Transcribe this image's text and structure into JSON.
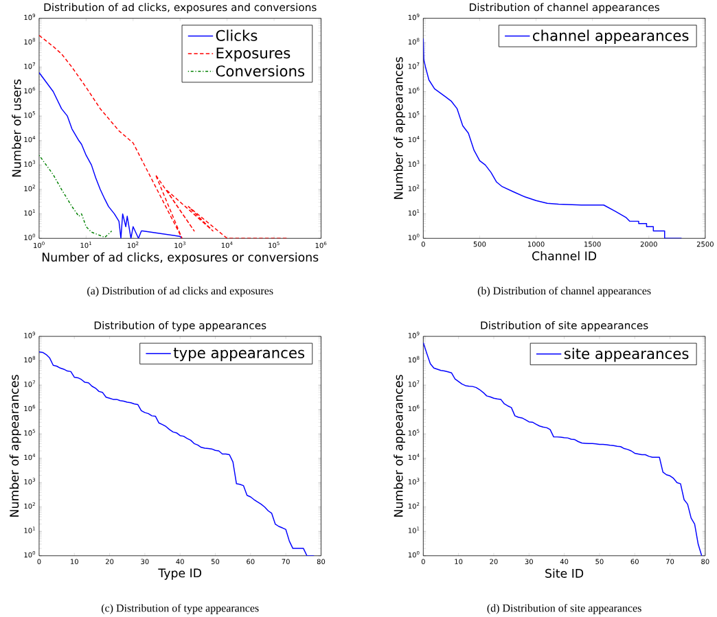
{
  "chart_data": [
    {
      "type": "line",
      "title": "Distribution of ad clicks, exposures and conversions",
      "xlabel": "Number of ad clicks, exposures or conversions",
      "ylabel": "Number of users",
      "annotations": [
        "(a) Distribution of ad clicks and exposures"
      ],
      "log": "xy",
      "legend": "top right",
      "xlim": [
        1,
        1000000
      ],
      "ylim": [
        1,
        1000000000
      ],
      "xticks": [
        {
          "value": 1,
          "label": "10$^{0}$"
        },
        {
          "value": 10,
          "label": "10$^{1}$"
        },
        {
          "value": 100,
          "label": "10$^{2}$"
        },
        {
          "value": 1000,
          "label": "10$^{3}$"
        },
        {
          "value": 10000,
          "label": "10$^{4}$"
        },
        {
          "value": 100000,
          "label": "10$^{5}$"
        },
        {
          "value": 1000000,
          "label": "10$^{6}$"
        }
      ],
      "yticks": [
        {
          "value": 1,
          "label": "10$^{0}$"
        },
        {
          "value": 10,
          "label": "10$^{1}$"
        },
        {
          "value": 100,
          "label": "10$^{2}$"
        },
        {
          "value": 1000,
          "label": "10$^{3}$"
        },
        {
          "value": 10000,
          "label": "10$^{4}$"
        },
        {
          "value": 100000,
          "label": "10$^{5}$"
        },
        {
          "value": 1000000,
          "label": "10$^{6}$"
        },
        {
          "value": 10000000,
          "label": "10$^{7}$"
        },
        {
          "value": 100000000,
          "label": "10$^{8}$"
        },
        {
          "value": 1000000000,
          "label": "10$^{9}$"
        }
      ],
      "series": [
        {
          "name": "Clicks",
          "color": "#0000ff",
          "line_style": "solid",
          "x": [
            1,
            2,
            3,
            4,
            5,
            7,
            8,
            10,
            13,
            16,
            20,
            25,
            30,
            40,
            50,
            55,
            60,
            70,
            75,
            90,
            100,
            130,
            150,
            160,
            1000,
            1100
          ],
          "values": [
            6000000,
            1000000,
            200000,
            100000,
            30000,
            10000,
            7000,
            2500,
            1000,
            300,
            100,
            40,
            20,
            10,
            5,
            1,
            10,
            3,
            8,
            1,
            3,
            1,
            2,
            2,
            1.2,
            1
          ]
        },
        {
          "name": "Exposures",
          "color": "#ff0000",
          "line_style": "dashed",
          "x": [
            1,
            2,
            3,
            5,
            10,
            20,
            50,
            100,
            1100,
            300,
            2000,
            500,
            5000,
            1500,
            10000,
            20000,
            200000
          ],
          "values": [
            200000000,
            70000000,
            35000000,
            10000000,
            1500000,
            200000,
            25000,
            8000,
            1,
            400,
            2,
            100,
            2,
            20,
            1,
            1,
            1
          ]
        },
        {
          "name": "Conversions",
          "color": "#008000",
          "line_style": "dotted",
          "x": [
            1,
            2,
            3,
            5,
            7,
            8,
            10,
            13,
            20,
            25,
            30,
            35
          ],
          "values": [
            2500,
            400,
            100,
            20,
            8,
            10,
            3,
            1.8,
            1.3,
            1.1,
            1.5,
            2
          ]
        }
      ]
    },
    {
      "type": "line",
      "title": "Distribution of channel appearances",
      "xlabel": "Channel ID",
      "ylabel": "Number of appearances",
      "annotations": [
        "(b) Distribution of channel appearances"
      ],
      "log": "y",
      "legend": "top right",
      "xlim": [
        0,
        2500
      ],
      "ylim": [
        1,
        1000000000
      ],
      "xticks": [
        0,
        500,
        1000,
        1500,
        2000,
        2500
      ],
      "yticks": [
        {
          "value": 1,
          "label": "10$^{0}$"
        },
        {
          "value": 10,
          "label": "10$^{1}$"
        },
        {
          "value": 100,
          "label": "10$^{2}$"
        },
        {
          "value": 1000,
          "label": "10$^{3}$"
        },
        {
          "value": 10000,
          "label": "10$^{4}$"
        },
        {
          "value": 100000,
          "label": "10$^{5}$"
        },
        {
          "value": 1000000,
          "label": "10$^{6}$"
        },
        {
          "value": 10000000,
          "label": "10$^{7}$"
        },
        {
          "value": 100000000,
          "label": "10$^{8}$"
        },
        {
          "value": 1000000000,
          "label": "10$^{9}$"
        }
      ],
      "series": [
        {
          "name": "channel appearances",
          "color": "#0000ff",
          "line_style": "solid",
          "x": [
            0,
            5,
            20,
            50,
            100,
            200,
            250,
            300,
            350,
            400,
            450,
            500,
            550,
            600,
            650,
            700,
            800,
            900,
            1000,
            1100,
            1200,
            1400,
            1600,
            1700,
            1800,
            1830,
            1910,
            1910,
            1980,
            1980,
            2040,
            2040,
            2140,
            2140,
            2290
          ],
          "values": [
            150000000,
            20000000,
            10000000,
            3000000,
            1300000,
            600000,
            400000,
            200000,
            40000,
            20000,
            4000,
            1500,
            1000,
            500,
            200,
            130,
            80,
            50,
            35,
            27,
            25,
            23,
            23,
            13,
            7,
            5,
            5,
            4,
            4,
            3,
            3,
            2,
            2,
            1,
            1
          ]
        }
      ]
    },
    {
      "type": "line",
      "title": "Distribution of type appearances",
      "xlabel": "Type ID",
      "ylabel": "Number of appearances",
      "annotations": [
        "(c) Distribution of type appearances"
      ],
      "log": "y",
      "legend": "top right",
      "xlim": [
        0,
        80
      ],
      "ylim": [
        1,
        1000000000
      ],
      "xticks": [
        0,
        10,
        20,
        30,
        40,
        50,
        60,
        70,
        80
      ],
      "yticks": [
        {
          "value": 1,
          "label": "10$^{0}$"
        },
        {
          "value": 10,
          "label": "10$^{1}$"
        },
        {
          "value": 100,
          "label": "10$^{2}$"
        },
        {
          "value": 1000,
          "label": "10$^{3}$"
        },
        {
          "value": 10000,
          "label": "10$^{4}$"
        },
        {
          "value": 100000,
          "label": "10$^{5}$"
        },
        {
          "value": 1000000,
          "label": "10$^{6}$"
        },
        {
          "value": 10000000,
          "label": "10$^{7}$"
        },
        {
          "value": 100000000,
          "label": "10$^{8}$"
        },
        {
          "value": 1000000000,
          "label": "10$^{9}$"
        }
      ],
      "series": [
        {
          "name": "type appearances",
          "color": "#0000ff",
          "line_style": "solid",
          "x": [
            0,
            1,
            2,
            3,
            4,
            5,
            6,
            7,
            8,
            9,
            10,
            11,
            12,
            13,
            14,
            15,
            16,
            17,
            18,
            19,
            20,
            21,
            22,
            23,
            24,
            25,
            26,
            27,
            28,
            29,
            30,
            31,
            32,
            33,
            34,
            35,
            36,
            37,
            38,
            39,
            40,
            41,
            42,
            43,
            44,
            45,
            46,
            47,
            48,
            49,
            50,
            51,
            52,
            53,
            54,
            55,
            56,
            57,
            58,
            59,
            60,
            61,
            62,
            63,
            64,
            65,
            66,
            67,
            68,
            69,
            70,
            71,
            72,
            73,
            74,
            75,
            76,
            77,
            78
          ],
          "values": [
            230000000,
            220000000,
            180000000,
            130000000,
            65000000,
            60000000,
            50000000,
            45000000,
            38000000,
            36000000,
            21000000,
            20000000,
            17000000,
            13000000,
            12500000,
            9000000,
            7500000,
            5500000,
            5000000,
            3200000,
            2900000,
            2600000,
            2600000,
            2300000,
            2200000,
            2000000,
            1900000,
            1700000,
            1600000,
            900000,
            750000,
            680000,
            550000,
            530000,
            280000,
            240000,
            200000,
            150000,
            120000,
            110000,
            85000,
            80000,
            65000,
            55000,
            40000,
            35000,
            28000,
            26000,
            25000,
            24000,
            21000,
            20000,
            15000,
            15000,
            14000,
            7000,
            900,
            850,
            750,
            300,
            260,
            200,
            160,
            130,
            100,
            70,
            55,
            20,
            16,
            14,
            12,
            4,
            2,
            2,
            2,
            2,
            1,
            1,
            1
          ]
        }
      ]
    },
    {
      "type": "line",
      "title": "Distribution of site appearances",
      "xlabel": "Site ID",
      "ylabel": "Number of appearances",
      "annotations": [
        "(d) Distribution of site appearances"
      ],
      "log": "y",
      "legend": "top right",
      "xlim": [
        0,
        80
      ],
      "ylim": [
        1,
        1000000000
      ],
      "xticks": [
        0,
        10,
        20,
        30,
        40,
        50,
        60,
        70,
        80
      ],
      "yticks": [
        {
          "value": 1,
          "label": "10$^{0}$"
        },
        {
          "value": 10,
          "label": "10$^{1}$"
        },
        {
          "value": 100,
          "label": "10$^{2}$"
        },
        {
          "value": 1000,
          "label": "10$^{3}$"
        },
        {
          "value": 10000,
          "label": "10$^{4}$"
        },
        {
          "value": 100000,
          "label": "10$^{5}$"
        },
        {
          "value": 1000000,
          "label": "10$^{6}$"
        },
        {
          "value": 10000000,
          "label": "10$^{7}$"
        },
        {
          "value": 100000000,
          "label": "10$^{8}$"
        },
        {
          "value": 1000000000,
          "label": "10$^{9}$"
        }
      ],
      "series": [
        {
          "name": "site appearances",
          "color": "#0000ff",
          "line_style": "solid",
          "x": [
            0,
            1,
            2,
            3,
            4,
            5,
            6,
            7,
            8,
            9,
            10,
            11,
            12,
            13,
            14,
            15,
            16,
            17,
            18,
            19,
            20,
            21,
            22,
            23,
            24,
            25,
            26,
            27,
            28,
            29,
            30,
            31,
            32,
            33,
            34,
            35,
            36,
            37,
            38,
            39,
            40,
            41,
            42,
            43,
            44,
            45,
            46,
            47,
            48,
            49,
            50,
            51,
            52,
            53,
            54,
            55,
            56,
            57,
            58,
            59,
            60,
            61,
            62,
            63,
            64,
            65,
            66,
            67,
            68,
            69,
            70,
            71,
            72,
            73,
            74,
            75,
            76,
            77,
            78,
            79
          ],
          "values": [
            550000000,
            200000000,
            75000000,
            50000000,
            45000000,
            40000000,
            38000000,
            35000000,
            32000000,
            18000000,
            14000000,
            11000000,
            9500000,
            9000000,
            8800000,
            8000000,
            6500000,
            5000000,
            3600000,
            3300000,
            2900000,
            2700000,
            2600000,
            1700000,
            1400000,
            1200000,
            550000,
            480000,
            450000,
            380000,
            310000,
            300000,
            250000,
            210000,
            190000,
            180000,
            150000,
            75000,
            75000,
            73000,
            70000,
            68000,
            60000,
            58000,
            48000,
            42000,
            41000,
            40000,
            40000,
            39000,
            37000,
            37000,
            36000,
            34000,
            33000,
            31000,
            30000,
            25000,
            23000,
            20000,
            16000,
            15000,
            14000,
            14000,
            12000,
            11000,
            11000,
            11000,
            2700,
            2100,
            1900,
            1500,
            1000,
            900,
            200,
            130,
            35,
            20,
            3,
            1
          ]
        }
      ]
    }
  ]
}
